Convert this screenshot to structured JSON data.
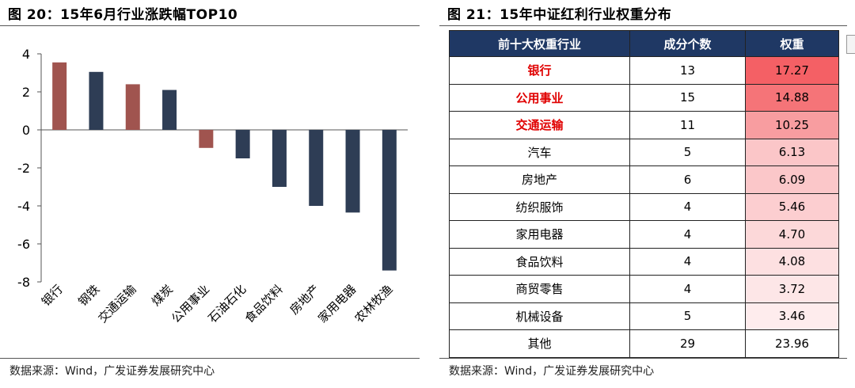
{
  "left": {
    "title": "图 20：15年6月行业涨跌幅TOP10",
    "source": "数据来源：Wind，广发证券发展研究中心"
  },
  "right": {
    "title": "图 21：15年中证红利行业权重分布",
    "source": "数据来源：Wind，广发证券发展研究中心",
    "headers": [
      "前十大权重行业",
      "成分个数",
      "权重"
    ],
    "rows": [
      {
        "name": "银行",
        "count": "13",
        "weight": "17.27",
        "highlight": true
      },
      {
        "name": "公用事业",
        "count": "15",
        "weight": "14.88",
        "highlight": true
      },
      {
        "name": "交通运输",
        "count": "11",
        "weight": "10.25",
        "highlight": true
      },
      {
        "name": "汽车",
        "count": "5",
        "weight": "6.13",
        "highlight": false
      },
      {
        "name": "房地产",
        "count": "6",
        "weight": "6.09",
        "highlight": false
      },
      {
        "name": "纺织服饰",
        "count": "4",
        "weight": "5.46",
        "highlight": false
      },
      {
        "name": "家用电器",
        "count": "4",
        "weight": "4.70",
        "highlight": false
      },
      {
        "name": "食品饮料",
        "count": "4",
        "weight": "4.08",
        "highlight": false
      },
      {
        "name": "商贸零售",
        "count": "4",
        "weight": "3.72",
        "highlight": false
      },
      {
        "name": "机械设备",
        "count": "5",
        "weight": "3.46",
        "highlight": false
      },
      {
        "name": "其他",
        "count": "29",
        "weight": "23.96",
        "highlight": false
      }
    ]
  },
  "colors": {
    "bar_dark": "#2e3d55",
    "bar_red": "#a0544f",
    "header_bg": "#1f3864",
    "highlight_text": "#e00000",
    "weight_heat_max": "#f46065",
    "weight_heat_min": "#ffffff"
  },
  "chart_data": {
    "type": "bar",
    "title": "",
    "xlabel": "",
    "ylabel": "",
    "ylim": [
      -8,
      4
    ],
    "yticks": [
      4,
      2,
      0,
      -2,
      -4,
      -6,
      -8
    ],
    "categories": [
      "银行",
      "钢铁",
      "交通运输",
      "煤炭",
      "公用事业",
      "石油石化",
      "食品饮料",
      "房地产",
      "家用电器",
      "农林牧渔"
    ],
    "values": [
      3.55,
      3.05,
      2.4,
      2.1,
      -0.95,
      -1.5,
      -3.0,
      -4.0,
      -4.35,
      -7.4
    ],
    "highlighted_categories": [
      "银行",
      "交通运输",
      "公用事业"
    ],
    "grid": false,
    "legend": "none"
  }
}
